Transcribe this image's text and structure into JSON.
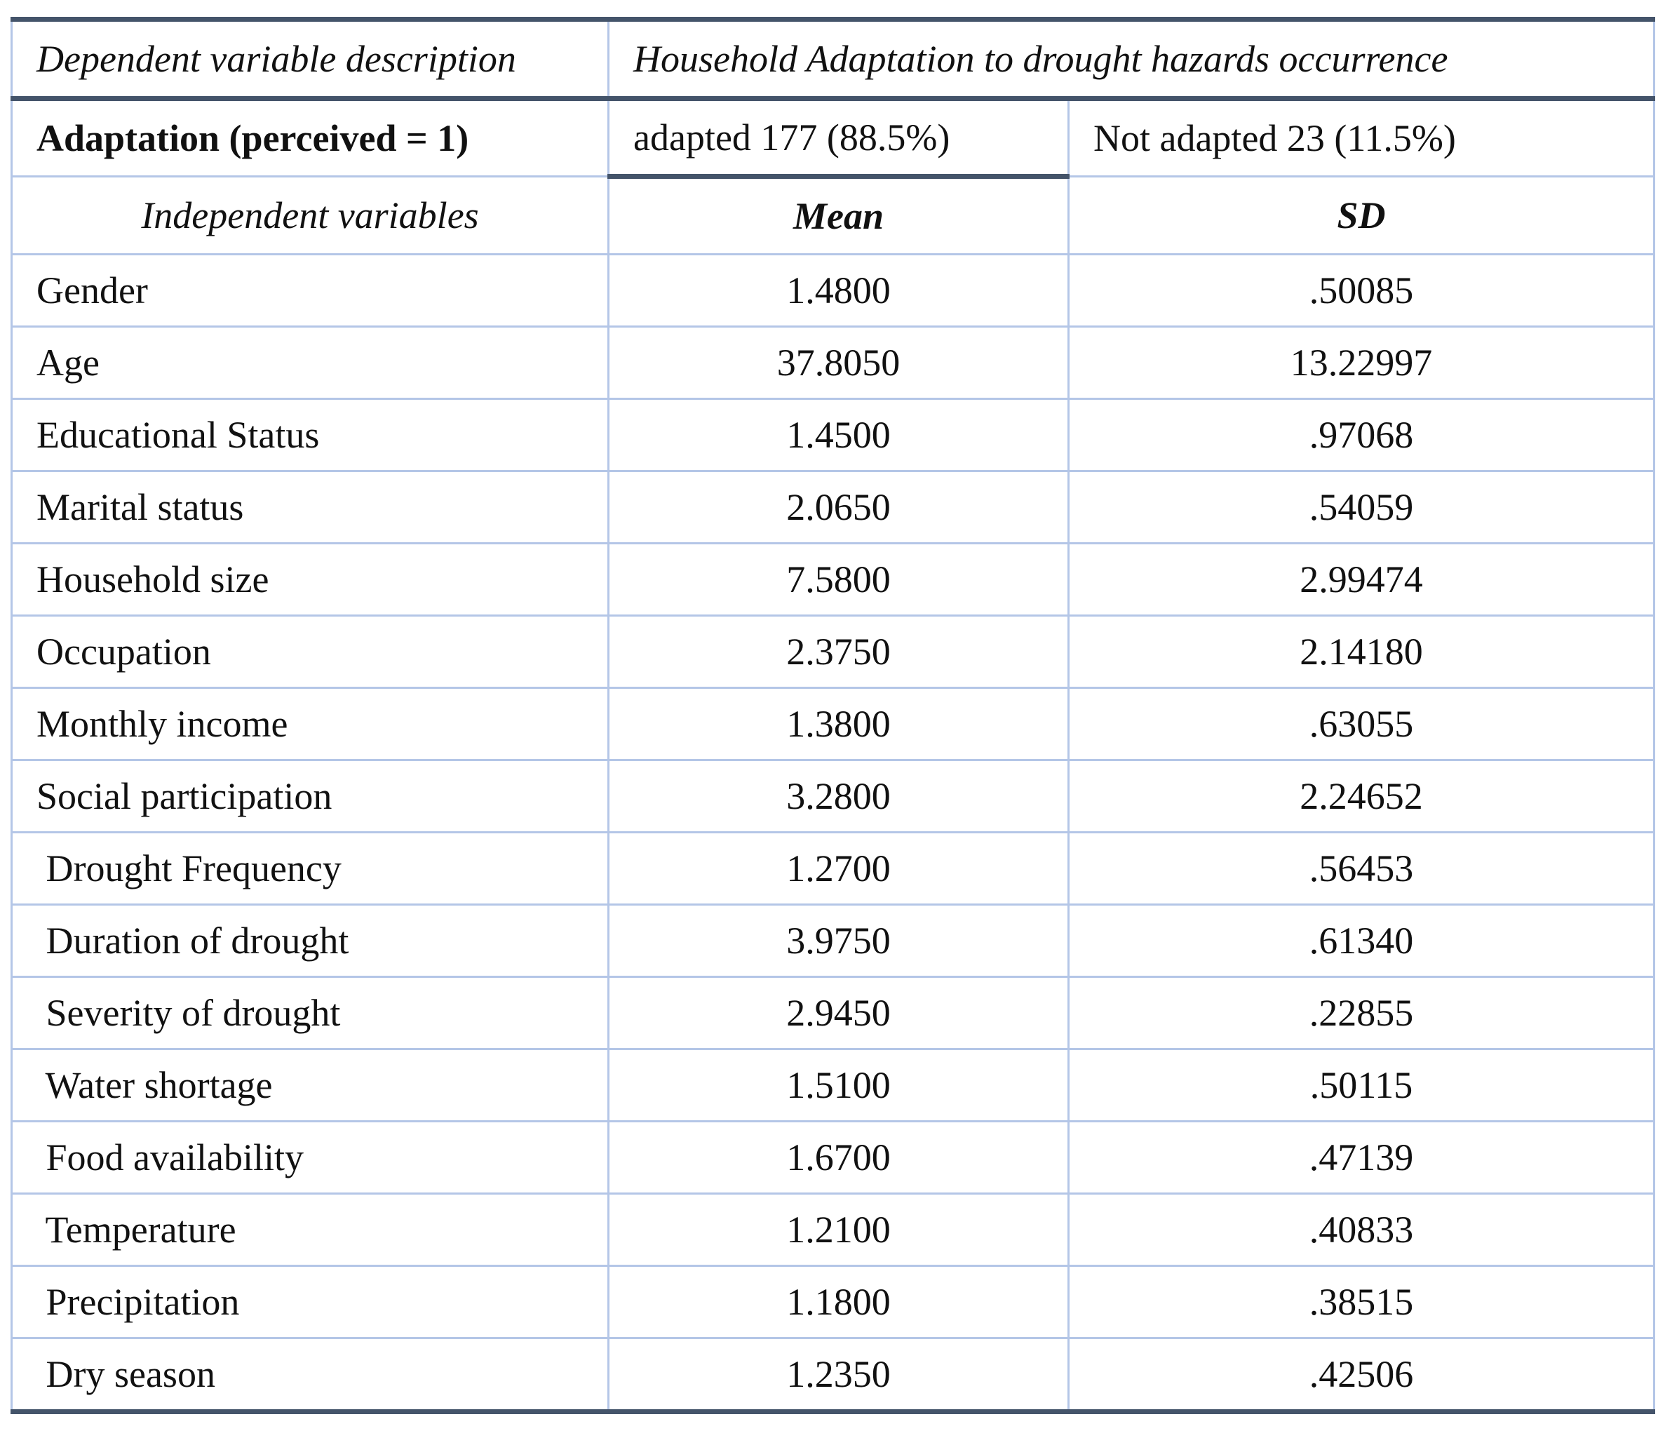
{
  "header": {
    "dependent_label": "Dependent variable description",
    "dependent_value": "Household Adaptation to drought hazards occurrence"
  },
  "adaptation": {
    "label": "Adaptation (perceived = 1)",
    "adapted": "adapted 177 (88.5%)",
    "not_adapted": "Not adapted 23 (11.5%)"
  },
  "table": {
    "columns": [
      "Independent variables",
      "Mean",
      "SD"
    ],
    "rows": [
      [
        "Gender",
        "1.4800",
        ".50085"
      ],
      [
        "Age",
        "37.8050",
        "13.22997"
      ],
      [
        "Educational Status",
        "1.4500",
        ".97068"
      ],
      [
        "Marital status",
        "2.0650",
        ".54059"
      ],
      [
        "Household size",
        "7.5800",
        "2.99474"
      ],
      [
        "Occupation",
        "2.3750",
        "2.14180"
      ],
      [
        "Monthly income",
        "1.3800",
        ".63055"
      ],
      [
        "Social participation",
        "3.2800",
        "2.24652"
      ],
      [
        " Drought Frequency",
        "1.2700",
        ".56453"
      ],
      [
        " Duration of drought",
        "3.9750",
        ".61340"
      ],
      [
        " Severity of drought",
        "2.9450",
        ".22855"
      ],
      [
        " Water shortage",
        "1.5100",
        ".50115"
      ],
      [
        " Food availability",
        "1.6700",
        ".47139"
      ],
      [
        " Temperature",
        "1.2100",
        ".40833"
      ],
      [
        " Precipitation",
        "1.1800",
        ".38515"
      ],
      [
        " Dry season",
        "1.2350",
        ".42506"
      ]
    ]
  }
}
